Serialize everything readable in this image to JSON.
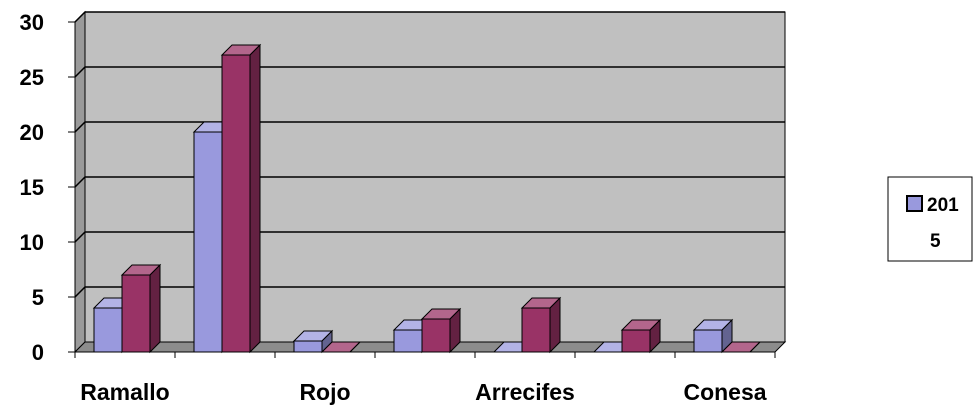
{
  "chart_data": {
    "type": "bar",
    "style": "3d-clustered-column",
    "title": "",
    "xlabel": "",
    "ylabel": "",
    "ylim": [
      0,
      30
    ],
    "yticks": [
      0,
      5,
      10,
      15,
      20,
      25,
      30
    ],
    "grid": true,
    "plot_background": "#c0c0c0",
    "categories": [
      "Ramallo",
      "",
      "Rojo",
      "",
      "Arrecifes",
      "",
      "Conesa"
    ],
    "series": [
      {
        "name": "",
        "color": "#9999dd",
        "values": [
          4,
          20,
          1,
          2,
          0,
          0,
          2
        ]
      },
      {
        "name": "",
        "color": "#993366",
        "values": [
          7,
          27,
          0,
          3,
          4,
          2,
          0
        ]
      }
    ],
    "legend": {
      "position": "right",
      "lines": [
        "201",
        "5"
      ]
    }
  }
}
